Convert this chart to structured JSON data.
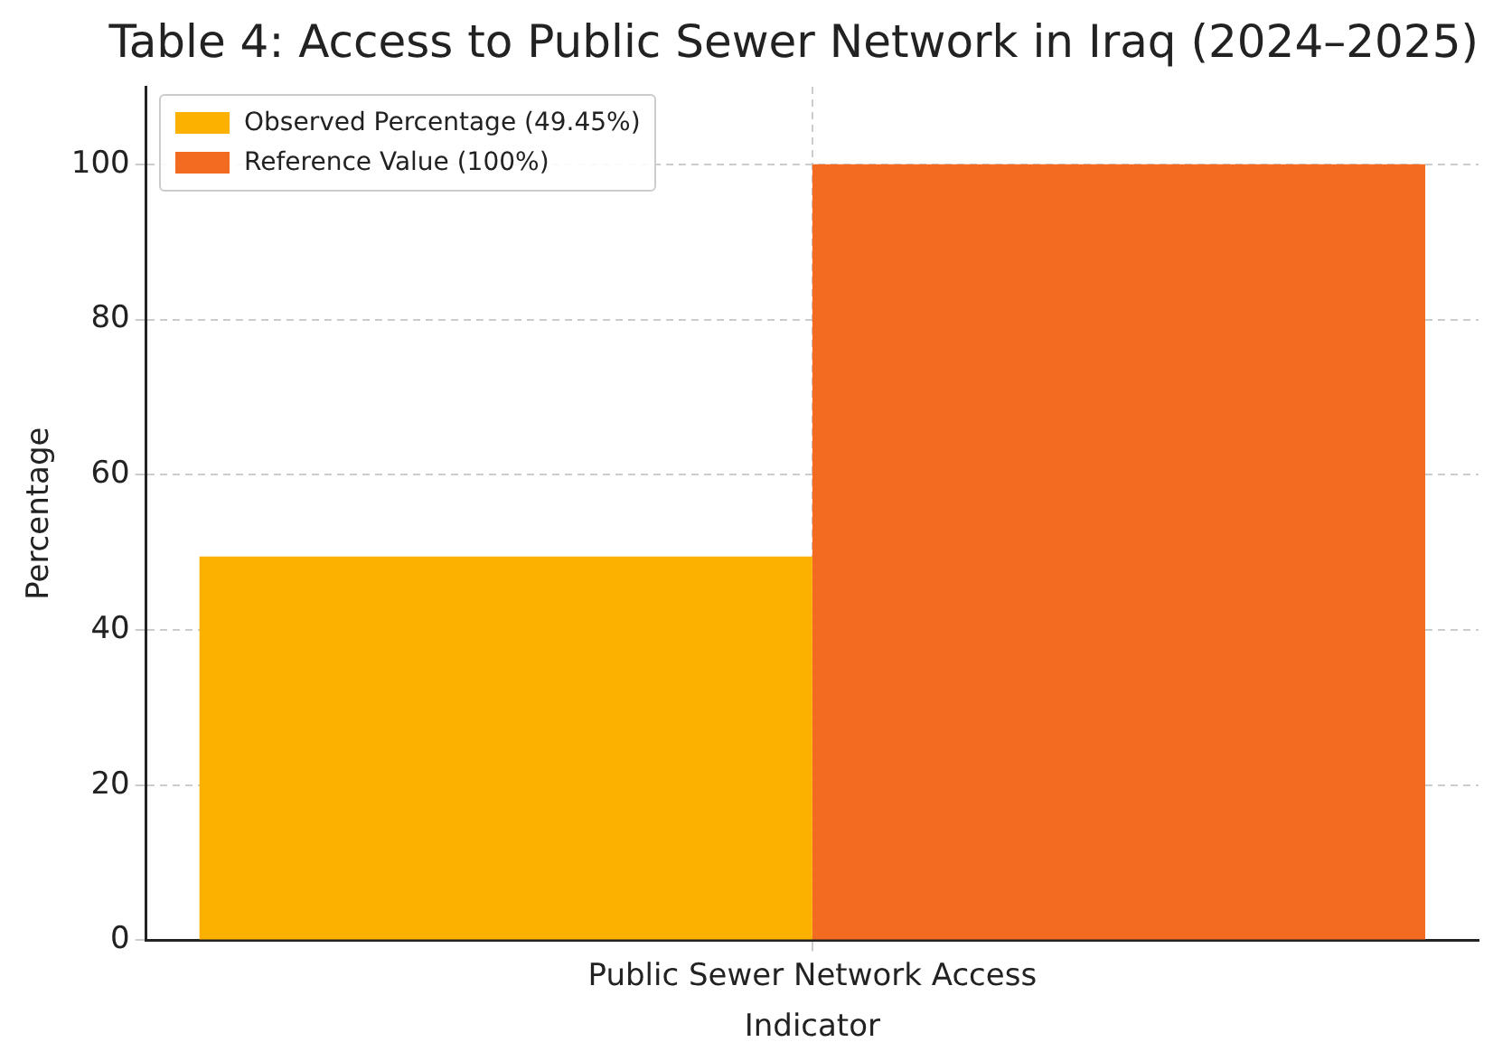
{
  "chart_data": {
    "type": "bar",
    "title": "Table 4: Access to Public Sewer Network in Iraq (2024–2025)",
    "xlabel": "Indicator",
    "ylabel": "Percentage",
    "categories": [
      "Public Sewer Network Access"
    ],
    "series": [
      {
        "name": "Observed Percentage (49.45%)",
        "color": "#fcb000",
        "values": [
          49.45
        ]
      },
      {
        "name": "Reference Value (100%)",
        "color": "#f26b21",
        "values": [
          100
        ]
      }
    ],
    "ylim": [
      0,
      110
    ],
    "yticks": [
      0,
      20,
      40,
      60,
      80,
      100
    ],
    "grid": true,
    "legend": "top left"
  }
}
